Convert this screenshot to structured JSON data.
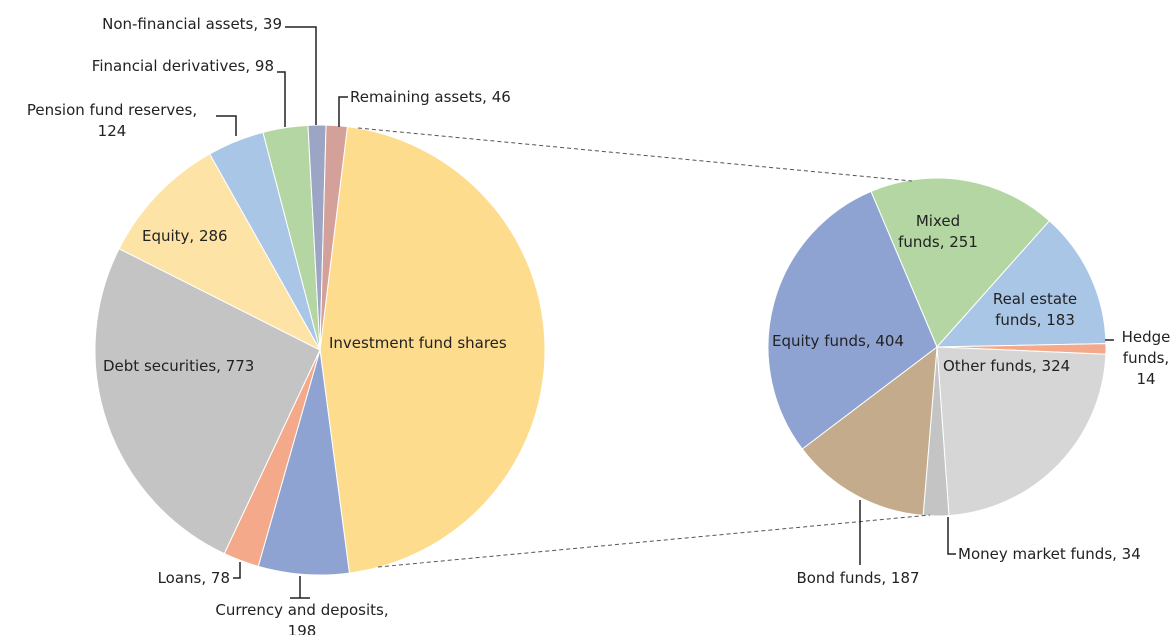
{
  "chart_data": [
    {
      "type": "pie",
      "labels": [
        "Investment fund shares",
        "Currency and deposits,\n198",
        "Loans, 78",
        "Debt securities, 773",
        "Equity, 286",
        "Pension fund reserves,\n124",
        "Financial derivatives, 98",
        "Non-financial assets, 39",
        "Remaining assets, 46"
      ],
      "values": [
        1397,
        198,
        78,
        773,
        286,
        124,
        98,
        39,
        46
      ],
      "colors": [
        "#fddc8e",
        "#8fa3d3",
        "#f4a98a",
        "#c4c4c4",
        "#fde3a6",
        "#aac6e6",
        "#b3d6a2",
        "#9da5c4",
        "#d4a09a"
      ]
    },
    {
      "type": "pie",
      "labels": [
        "Mixed\nfunds, 251",
        "Real estate\nfunds, 183",
        "Hedge\nfunds,\n14",
        "Other funds, 324",
        "Money market funds, 34",
        "Bond funds, 187",
        "Equity funds, 404"
      ],
      "values": [
        251,
        183,
        14,
        324,
        34,
        187,
        404
      ],
      "colors": [
        "#b3d6a2",
        "#aac6e6",
        "#f4a98a",
        "#d6d6d6",
        "#c4c4c4",
        "#c4ab8b",
        "#8fa3d3"
      ]
    }
  ]
}
